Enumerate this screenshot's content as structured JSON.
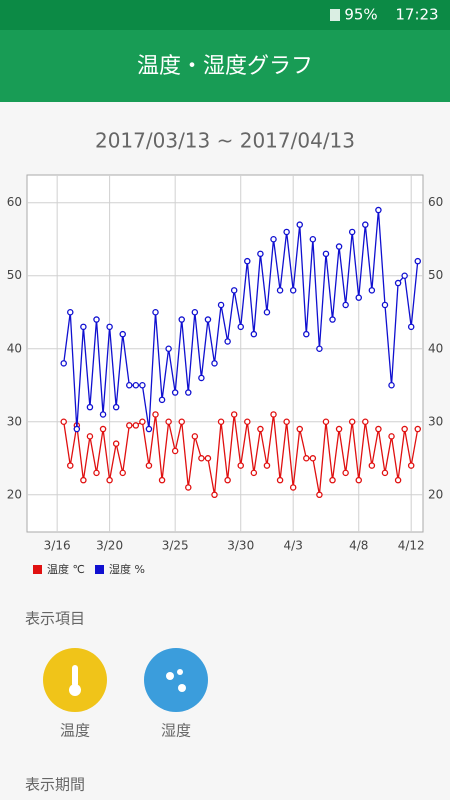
{
  "status_bar": {
    "battery": "95%",
    "time": "17:23"
  },
  "app_bar": {
    "title": "温度・湿度グラフ"
  },
  "chart_data": {
    "type": "line",
    "title": "2017/03/13 ~ 2017/04/13",
    "x": [
      0.5,
      1,
      1.5,
      2,
      2.5,
      3,
      3.5,
      4,
      4.5,
      5,
      5.5,
      6,
      6.5,
      7,
      7.5,
      8,
      8.5,
      9,
      9.5,
      10,
      10.5,
      11,
      11.5,
      12,
      12.5,
      13,
      13.5,
      14,
      14.5,
      15,
      15.5,
      16,
      16.5,
      17,
      17.5,
      18,
      18.5,
      19,
      19.5,
      20,
      20.5,
      21,
      21.5,
      22,
      22.5,
      23,
      23.5,
      24,
      24.5,
      25,
      25.5,
      26,
      26.5,
      27,
      27.5
    ],
    "series": [
      {
        "name": "温度 ℃",
        "color": "#e01010",
        "values": [
          30,
          24,
          29.5,
          22,
          28,
          23,
          29,
          22,
          27,
          23,
          29.5,
          29.5,
          30,
          24,
          31,
          22,
          30,
          26,
          30,
          21,
          28,
          25,
          25,
          20,
          30,
          22,
          31,
          24,
          30,
          23,
          29,
          24,
          31,
          22,
          30,
          21,
          29,
          25,
          25,
          20,
          30,
          22,
          29,
          23,
          30,
          22,
          30,
          24,
          29,
          23,
          28,
          22,
          29,
          24,
          29
        ]
      },
      {
        "name": "湿度 %",
        "color": "#1010d0",
        "values": [
          38,
          45,
          29,
          43,
          32,
          44,
          31,
          43,
          32,
          42,
          35,
          35,
          35,
          29,
          45,
          33,
          40,
          34,
          44,
          34,
          45,
          36,
          44,
          38,
          46,
          41,
          48,
          43,
          52,
          42,
          53,
          45,
          55,
          48,
          56,
          48,
          57,
          42,
          55,
          40,
          53,
          44,
          54,
          46,
          56,
          47,
          57,
          48,
          59,
          46,
          35,
          49,
          50,
          43,
          52
        ]
      }
    ],
    "xlim": [
      -2.3,
      27.9
    ],
    "xticks": [
      {
        "value": 0,
        "label": "3/16"
      },
      {
        "value": 4,
        "label": "3/20"
      },
      {
        "value": 9,
        "label": "3/25"
      },
      {
        "value": 14,
        "label": "3/30"
      },
      {
        "value": 18,
        "label": "4/3"
      },
      {
        "value": 23,
        "label": "4/8"
      },
      {
        "value": 27,
        "label": "4/12"
      }
    ],
    "ylim": [
      14.9,
      63.8
    ],
    "yticks": [
      20,
      30,
      40,
      50,
      60
    ],
    "grid": true
  },
  "display_items": {
    "heading": "表示項目",
    "buttons": [
      {
        "label": "温度"
      },
      {
        "label": "湿度"
      }
    ]
  },
  "display_period": {
    "heading": "表示期間"
  }
}
